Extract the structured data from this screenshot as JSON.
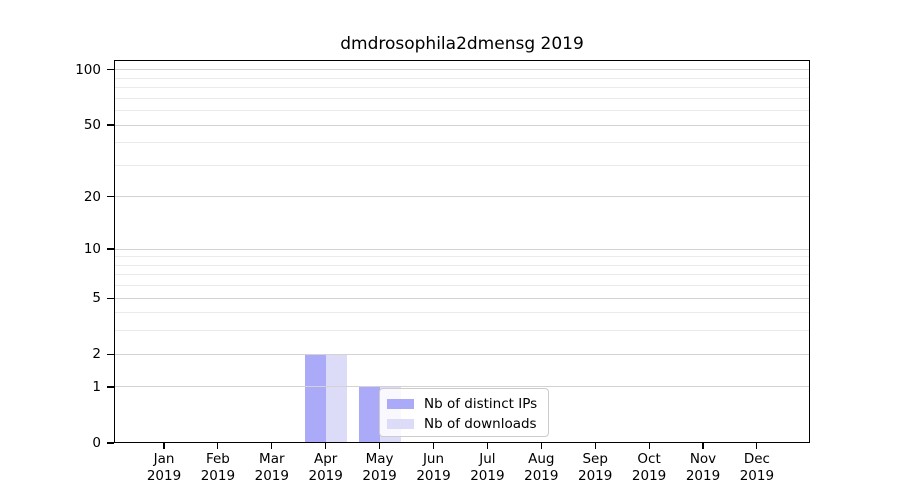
{
  "chart_data": {
    "type": "bar",
    "title": "dmdrosophila2dmensg 2019",
    "categories": [
      "Jan 2019",
      "Feb 2019",
      "Mar 2019",
      "Apr 2019",
      "May 2019",
      "Jun 2019",
      "Jul 2019",
      "Aug 2019",
      "Sep 2019",
      "Oct 2019",
      "Nov 2019",
      "Dec 2019"
    ],
    "series": [
      {
        "name": "Nb of distinct IPs",
        "color": "#aaaaf8",
        "values": [
          0,
          0,
          0,
          2,
          1,
          0,
          0,
          0,
          0,
          0,
          0,
          0
        ]
      },
      {
        "name": "Nb of downloads",
        "color": "#dcdcf9",
        "values": [
          0,
          0,
          0,
          2,
          1,
          0,
          0,
          0,
          0,
          0,
          0,
          0
        ]
      }
    ],
    "yscale": "log1p",
    "ylim": [
      0,
      113
    ],
    "yticks": [
      0,
      1,
      2,
      5,
      10,
      20,
      50,
      100
    ],
    "yticks_minor": [
      3,
      4,
      6,
      7,
      8,
      9,
      30,
      40,
      60,
      70,
      80,
      90
    ],
    "xlabel": "",
    "ylabel": "",
    "grid": "horizontal-major-and-minor",
    "legend_position": "inside-lower-center"
  },
  "colors": {
    "grid_major": "#d2d2d2",
    "grid_minor": "#eaeaea",
    "axis": "#000000",
    "legend_border": "#cccccc",
    "background": "#ffffff"
  }
}
